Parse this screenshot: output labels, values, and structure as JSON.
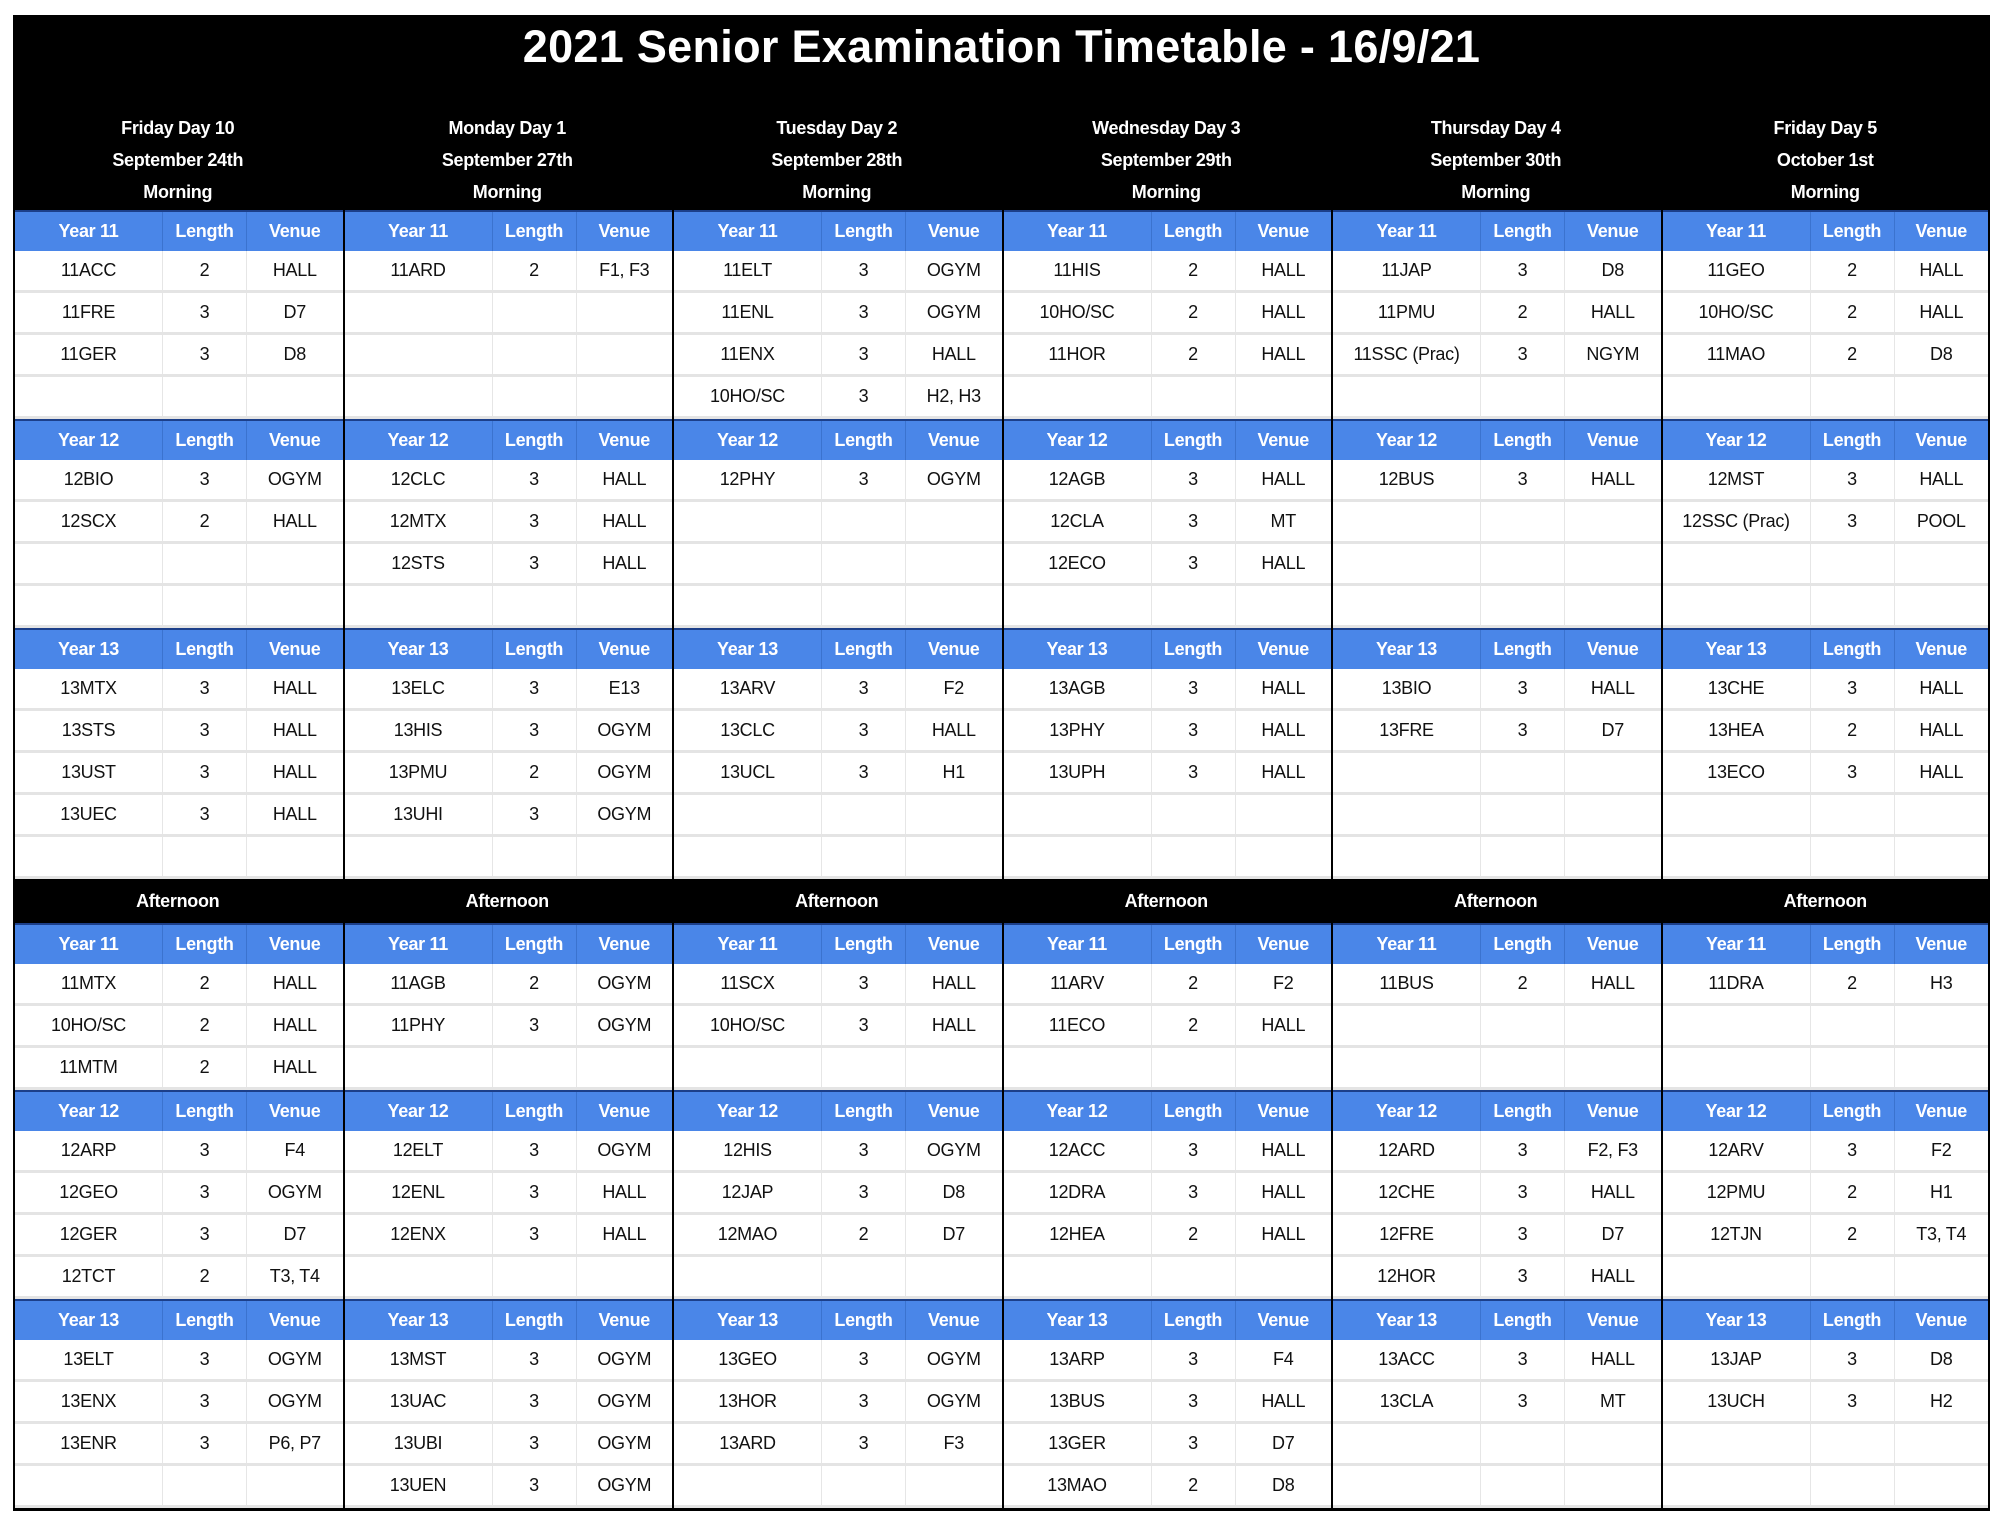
{
  "title": "2021 Senior Examination Timetable - 16/9/21",
  "columns": {
    "length": "Length",
    "venue": "Venue"
  },
  "colors": {
    "header_blue": "#4a86e8",
    "band_black": "#000000"
  },
  "days": [
    {
      "day": "Friday Day 10",
      "date": "September 24th"
    },
    {
      "day": "Monday Day 1",
      "date": "September 27th"
    },
    {
      "day": "Tuesday Day 2",
      "date": "September 28th"
    },
    {
      "day": "Wednesday Day 3",
      "date": "September 29th"
    },
    {
      "day": "Thursday Day 4",
      "date": "September 30th"
    },
    {
      "day": "Friday Day 5",
      "date": "October 1st"
    }
  ],
  "sessions": [
    {
      "label": "Morning",
      "blocks": [
        {
          "year": "Year 11",
          "days": [
            [
              [
                "11ACC",
                "2",
                "HALL"
              ],
              [
                "11FRE",
                "3",
                "D7"
              ],
              [
                "11GER",
                "3",
                "D8"
              ]
            ],
            [
              [
                "11ARD",
                "2",
                "F1, F3"
              ]
            ],
            [
              [
                "11ELT",
                "3",
                "OGYM"
              ],
              [
                "11ENL",
                "3",
                "OGYM"
              ],
              [
                "11ENX",
                "3",
                "HALL"
              ],
              [
                "10HO/SC",
                "3",
                "H2, H3"
              ]
            ],
            [
              [
                "11HIS",
                "2",
                "HALL"
              ],
              [
                "10HO/SC",
                "2",
                "HALL"
              ],
              [
                "11HOR",
                "2",
                "HALL"
              ]
            ],
            [
              [
                "11JAP",
                "3",
                "D8"
              ],
              [
                "11PMU",
                "2",
                "HALL"
              ],
              [
                "11SSC (Prac)",
                "3",
                "NGYM"
              ]
            ],
            [
              [
                "11GEO",
                "2",
                "HALL"
              ],
              [
                "10HO/SC",
                "2",
                "HALL"
              ],
              [
                "11MAO",
                "2",
                "D8"
              ]
            ]
          ]
        },
        {
          "year": "Year 12",
          "days": [
            [
              [
                "12BIO",
                "3",
                "OGYM"
              ],
              [
                "12SCX",
                "2",
                "HALL"
              ]
            ],
            [
              [
                "12CLC",
                "3",
                "HALL"
              ],
              [
                "12MTX",
                "3",
                "HALL"
              ],
              [
                "12STS",
                "3",
                "HALL"
              ]
            ],
            [
              [
                "12PHY",
                "3",
                "OGYM"
              ]
            ],
            [
              [
                "12AGB",
                "3",
                "HALL"
              ],
              [
                "12CLA",
                "3",
                "MT"
              ],
              [
                "12ECO",
                "3",
                "HALL"
              ]
            ],
            [
              [
                "12BUS",
                "3",
                "HALL"
              ]
            ],
            [
              [
                "12MST",
                "3",
                "HALL"
              ],
              [
                "12SSC (Prac)",
                "3",
                "POOL"
              ]
            ]
          ]
        },
        {
          "year": "Year 13",
          "days": [
            [
              [
                "13MTX",
                "3",
                "HALL"
              ],
              [
                "13STS",
                "3",
                "HALL"
              ],
              [
                "13UST",
                "3",
                "HALL"
              ],
              [
                "13UEC",
                "3",
                "HALL"
              ]
            ],
            [
              [
                "13ELC",
                "3",
                "E13"
              ],
              [
                "13HIS",
                "3",
                "OGYM"
              ],
              [
                "13PMU",
                "2",
                "OGYM"
              ],
              [
                "13UHI",
                "3",
                "OGYM"
              ]
            ],
            [
              [
                "13ARV",
                "3",
                "F2"
              ],
              [
                "13CLC",
                "3",
                "HALL"
              ],
              [
                "13UCL",
                "3",
                "H1"
              ]
            ],
            [
              [
                "13AGB",
                "3",
                "HALL"
              ],
              [
                "13PHY",
                "3",
                "HALL"
              ],
              [
                "13UPH",
                "3",
                "HALL"
              ]
            ],
            [
              [
                "13BIO",
                "3",
                "HALL"
              ],
              [
                "13FRE",
                "3",
                "D7"
              ]
            ],
            [
              [
                "13CHE",
                "3",
                "HALL"
              ],
              [
                "13HEA",
                "2",
                "HALL"
              ],
              [
                "13ECO",
                "3",
                "HALL"
              ]
            ]
          ]
        }
      ]
    },
    {
      "label": "Afternoon",
      "blocks": [
        {
          "year": "Year 11",
          "days": [
            [
              [
                "11MTX",
                "2",
                "HALL"
              ],
              [
                "10HO/SC",
                "2",
                "HALL"
              ],
              [
                "11MTM",
                "2",
                "HALL"
              ]
            ],
            [
              [
                "11AGB",
                "2",
                "OGYM"
              ],
              [
                "11PHY",
                "3",
                "OGYM"
              ]
            ],
            [
              [
                "11SCX",
                "3",
                "HALL"
              ],
              [
                "10HO/SC",
                "3",
                "HALL"
              ]
            ],
            [
              [
                "11ARV",
                "2",
                "F2"
              ],
              [
                "11ECO",
                "2",
                "HALL"
              ]
            ],
            [
              [
                "11BUS",
                "2",
                "HALL"
              ]
            ],
            [
              [
                "11DRA",
                "2",
                "H3"
              ]
            ]
          ]
        },
        {
          "year": "Year 12",
          "days": [
            [
              [
                "12ARP",
                "3",
                "F4"
              ],
              [
                "12GEO",
                "3",
                "OGYM"
              ],
              [
                "12GER",
                "3",
                "D7"
              ],
              [
                "12TCT",
                "2",
                "T3, T4"
              ]
            ],
            [
              [
                "12ELT",
                "3",
                "OGYM"
              ],
              [
                "12ENL",
                "3",
                "HALL"
              ],
              [
                "12ENX",
                "3",
                "HALL"
              ]
            ],
            [
              [
                "12HIS",
                "3",
                "OGYM"
              ],
              [
                "12JAP",
                "3",
                "D8"
              ],
              [
                "12MAO",
                "2",
                "D7"
              ]
            ],
            [
              [
                "12ACC",
                "3",
                "HALL"
              ],
              [
                "12DRA",
                "3",
                "HALL"
              ],
              [
                "12HEA",
                "2",
                "HALL"
              ]
            ],
            [
              [
                "12ARD",
                "3",
                "F2, F3"
              ],
              [
                "12CHE",
                "3",
                "HALL"
              ],
              [
                "12FRE",
                "3",
                "D7"
              ],
              [
                "12HOR",
                "3",
                "HALL"
              ]
            ],
            [
              [
                "12ARV",
                "3",
                "F2"
              ],
              [
                "12PMU",
                "2",
                "H1"
              ],
              [
                "12TJN",
                "2",
                "T3, T4"
              ]
            ]
          ]
        },
        {
          "year": "Year 13",
          "days": [
            [
              [
                "13ELT",
                "3",
                "OGYM"
              ],
              [
                "13ENX",
                "3",
                "OGYM"
              ],
              [
                "13ENR",
                "3",
                "P6, P7"
              ]
            ],
            [
              [
                "13MST",
                "3",
                "OGYM"
              ],
              [
                "13UAC",
                "3",
                "OGYM"
              ],
              [
                "13UBI",
                "3",
                "OGYM"
              ],
              [
                "13UEN",
                "3",
                "OGYM"
              ]
            ],
            [
              [
                "13GEO",
                "3",
                "OGYM"
              ],
              [
                "13HOR",
                "3",
                "OGYM"
              ],
              [
                "13ARD",
                "3",
                "F3"
              ]
            ],
            [
              [
                "13ARP",
                "3",
                "F4"
              ],
              [
                "13BUS",
                "3",
                "HALL"
              ],
              [
                "13GER",
                "3",
                "D7"
              ],
              [
                "13MAO",
                "2",
                "D8"
              ]
            ],
            [
              [
                "13ACC",
                "3",
                "HALL"
              ],
              [
                "13CLA",
                "3",
                "MT"
              ]
            ],
            [
              [
                "13JAP",
                "3",
                "D8"
              ],
              [
                "13UCH",
                "3",
                "H2"
              ]
            ]
          ]
        }
      ]
    }
  ]
}
